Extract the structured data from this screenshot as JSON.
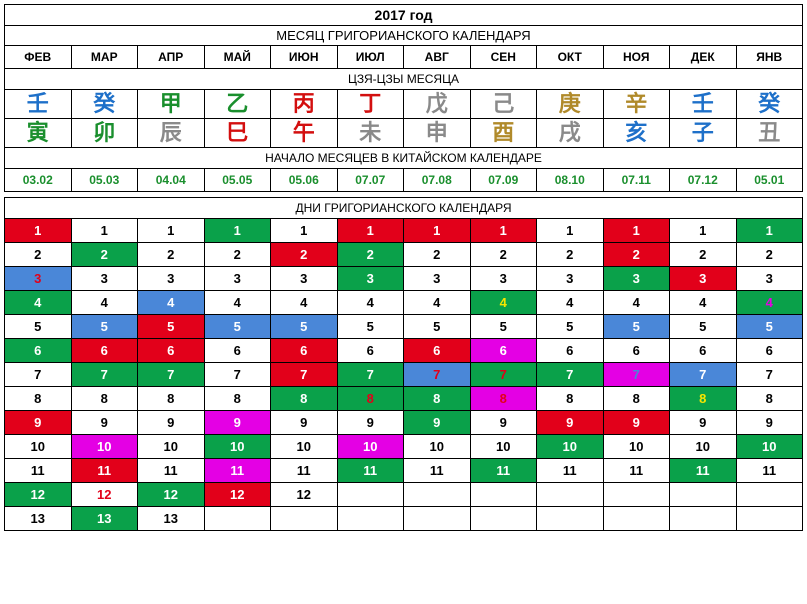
{
  "title": "2017 год",
  "subtitle_months": "МЕСЯЦ ГРИГОРИАНСКОГО КАЛЕНДАРЯ",
  "months": [
    "ФЕВ",
    "МАР",
    "АПР",
    "МАЙ",
    "ИЮН",
    "ИЮЛ",
    "АВГ",
    "СЕН",
    "ОКТ",
    "НОЯ",
    "ДЕК",
    "ЯНВ"
  ],
  "jiazi_label": "ЦЗЯ-ЦЗЫ МЕСЯЦА",
  "jiazi_row1": [
    {
      "char": "壬",
      "color": "#1e70c9"
    },
    {
      "char": "癸",
      "color": "#1e70c9"
    },
    {
      "char": "甲",
      "color": "#1a8f2d"
    },
    {
      "char": "乙",
      "color": "#1a8f2d"
    },
    {
      "char": "丙",
      "color": "#d30f0f"
    },
    {
      "char": "丁",
      "color": "#d30f0f"
    },
    {
      "char": "戊",
      "color": "#8a8a8a"
    },
    {
      "char": "己",
      "color": "#8a8a8a"
    },
    {
      "char": "庚",
      "color": "#b08a2a"
    },
    {
      "char": "辛",
      "color": "#b08a2a"
    },
    {
      "char": "壬",
      "color": "#1e70c9"
    },
    {
      "char": "癸",
      "color": "#1e70c9"
    }
  ],
  "jiazi_row2": [
    {
      "char": "寅",
      "color": "#1a8f2d"
    },
    {
      "char": "卯",
      "color": "#1a8f2d"
    },
    {
      "char": "辰",
      "color": "#8a8a8a"
    },
    {
      "char": "巳",
      "color": "#d30f0f"
    },
    {
      "char": "午",
      "color": "#d30f0f"
    },
    {
      "char": "未",
      "color": "#8a8a8a"
    },
    {
      "char": "申",
      "color": "#8a8a8a"
    },
    {
      "char": "酉",
      "color": "#b08a2a"
    },
    {
      "char": "戌",
      "color": "#8a8a8a"
    },
    {
      "char": "亥",
      "color": "#1e70c9"
    },
    {
      "char": "子",
      "color": "#1e70c9"
    },
    {
      "char": "丑",
      "color": "#8a8a8a"
    }
  ],
  "start_label": "НАЧАЛО МЕСЯЦЕВ В КИТАЙСКОМ КАЛЕНДАРЕ",
  "start_dates": [
    "03.02",
    "05.03",
    "04.04",
    "05.05",
    "05.06",
    "07.07",
    "07.08",
    "07.09",
    "08.10",
    "07.11",
    "07.12",
    "05.01"
  ],
  "start_date_color": "#1a8f2d",
  "days_label": "ДНИ ГРИГОРИАНСКОГО КАЛЕНДАРЯ",
  "colors": {
    "white": {
      "bg": "#ffffff",
      "fg": "#000000"
    },
    "red": {
      "bg": "#e2001a",
      "fg": "#ffffff"
    },
    "green": {
      "bg": "#0aa14a",
      "fg": "#ffffff"
    },
    "blue": {
      "bg": "#4a87d8",
      "fg": "#ffffff"
    },
    "magenta": {
      "bg": "#e400e4",
      "fg": "#ffffff"
    },
    "red_on_green": {
      "bg": "#0aa14a",
      "fg": "#e2001a"
    },
    "red_on_blue": {
      "bg": "#4a87d8",
      "fg": "#e2001a"
    },
    "red_on_magenta": {
      "bg": "#e400e4",
      "fg": "#e2001a"
    },
    "red_on_white": {
      "bg": "#ffffff",
      "fg": "#e2001a"
    },
    "blue_on_magenta": {
      "bg": "#e400e4",
      "fg": "#4a87d8"
    },
    "yellow_on_green": {
      "bg": "#0aa14a",
      "fg": "#f6e600"
    },
    "magenta_on_green": {
      "bg": "#0aa14a",
      "fg": "#e400e4"
    }
  },
  "days": [
    [
      {
        "v": "1",
        "c": "red"
      },
      {
        "v": "1",
        "c": "white"
      },
      {
        "v": "1",
        "c": "white"
      },
      {
        "v": "1",
        "c": "green"
      },
      {
        "v": "1",
        "c": "white"
      },
      {
        "v": "1",
        "c": "red"
      },
      {
        "v": "1",
        "c": "red"
      },
      {
        "v": "1",
        "c": "red"
      },
      {
        "v": "1",
        "c": "white"
      },
      {
        "v": "1",
        "c": "red"
      },
      {
        "v": "1",
        "c": "white"
      },
      {
        "v": "1",
        "c": "green"
      }
    ],
    [
      {
        "v": "2",
        "c": "white"
      },
      {
        "v": "2",
        "c": "green"
      },
      {
        "v": "2",
        "c": "white"
      },
      {
        "v": "2",
        "c": "white"
      },
      {
        "v": "2",
        "c": "red"
      },
      {
        "v": "2",
        "c": "green"
      },
      {
        "v": "2",
        "c": "white"
      },
      {
        "v": "2",
        "c": "white"
      },
      {
        "v": "2",
        "c": "white"
      },
      {
        "v": "2",
        "c": "red"
      },
      {
        "v": "2",
        "c": "white"
      },
      {
        "v": "2",
        "c": "white"
      }
    ],
    [
      {
        "v": "3",
        "c": "red_on_blue"
      },
      {
        "v": "3",
        "c": "white"
      },
      {
        "v": "3",
        "c": "white"
      },
      {
        "v": "3",
        "c": "white"
      },
      {
        "v": "3",
        "c": "white"
      },
      {
        "v": "3",
        "c": "green"
      },
      {
        "v": "3",
        "c": "white"
      },
      {
        "v": "3",
        "c": "white"
      },
      {
        "v": "3",
        "c": "white"
      },
      {
        "v": "3",
        "c": "green"
      },
      {
        "v": "3",
        "c": "red"
      },
      {
        "v": "3",
        "c": "white"
      }
    ],
    [
      {
        "v": "4",
        "c": "green"
      },
      {
        "v": "4",
        "c": "white"
      },
      {
        "v": "4",
        "c": "blue"
      },
      {
        "v": "4",
        "c": "white"
      },
      {
        "v": "4",
        "c": "white"
      },
      {
        "v": "4",
        "c": "white"
      },
      {
        "v": "4",
        "c": "white"
      },
      {
        "v": "4",
        "c": "yellow_on_green"
      },
      {
        "v": "4",
        "c": "white"
      },
      {
        "v": "4",
        "c": "white"
      },
      {
        "v": "4",
        "c": "white"
      },
      {
        "v": "4",
        "c": "magenta_on_green"
      }
    ],
    [
      {
        "v": "5",
        "c": "white"
      },
      {
        "v": "5",
        "c": "blue"
      },
      {
        "v": "5",
        "c": "red"
      },
      {
        "v": "5",
        "c": "blue"
      },
      {
        "v": "5",
        "c": "blue"
      },
      {
        "v": "5",
        "c": "white"
      },
      {
        "v": "5",
        "c": "white"
      },
      {
        "v": "5",
        "c": "white"
      },
      {
        "v": "5",
        "c": "white"
      },
      {
        "v": "5",
        "c": "blue"
      },
      {
        "v": "5",
        "c": "white"
      },
      {
        "v": "5",
        "c": "blue"
      }
    ],
    [
      {
        "v": "6",
        "c": "green"
      },
      {
        "v": "6",
        "c": "red"
      },
      {
        "v": "6",
        "c": "red"
      },
      {
        "v": "6",
        "c": "white"
      },
      {
        "v": "6",
        "c": "red"
      },
      {
        "v": "6",
        "c": "white"
      },
      {
        "v": "6",
        "c": "red"
      },
      {
        "v": "6",
        "c": "magenta"
      },
      {
        "v": "6",
        "c": "white"
      },
      {
        "v": "6",
        "c": "white"
      },
      {
        "v": "6",
        "c": "white"
      },
      {
        "v": "6",
        "c": "white"
      }
    ],
    [
      {
        "v": "7",
        "c": "white"
      },
      {
        "v": "7",
        "c": "green"
      },
      {
        "v": "7",
        "c": "green"
      },
      {
        "v": "7",
        "c": "white"
      },
      {
        "v": "7",
        "c": "red"
      },
      {
        "v": "7",
        "c": "green"
      },
      {
        "v": "7",
        "c": "red_on_blue"
      },
      {
        "v": "7",
        "c": "red_on_green"
      },
      {
        "v": "7",
        "c": "green"
      },
      {
        "v": "7",
        "c": "blue_on_magenta"
      },
      {
        "v": "7",
        "c": "blue"
      },
      {
        "v": "7",
        "c": "white"
      }
    ],
    [
      {
        "v": "8",
        "c": "white"
      },
      {
        "v": "8",
        "c": "white"
      },
      {
        "v": "8",
        "c": "white"
      },
      {
        "v": "8",
        "c": "white"
      },
      {
        "v": "8",
        "c": "green"
      },
      {
        "v": "8",
        "c": "red_on_green"
      },
      {
        "v": "8",
        "c": "green"
      },
      {
        "v": "8",
        "c": "red_on_magenta"
      },
      {
        "v": "8",
        "c": "white"
      },
      {
        "v": "8",
        "c": "white"
      },
      {
        "v": "8",
        "c": "yellow_on_green"
      },
      {
        "v": "8",
        "c": "white"
      }
    ],
    [
      {
        "v": "9",
        "c": "red"
      },
      {
        "v": "9",
        "c": "white"
      },
      {
        "v": "9",
        "c": "white"
      },
      {
        "v": "9",
        "c": "magenta"
      },
      {
        "v": "9",
        "c": "white"
      },
      {
        "v": "9",
        "c": "white"
      },
      {
        "v": "9",
        "c": "green"
      },
      {
        "v": "9",
        "c": "white"
      },
      {
        "v": "9",
        "c": "red"
      },
      {
        "v": "9",
        "c": "red"
      },
      {
        "v": "9",
        "c": "white"
      },
      {
        "v": "9",
        "c": "white"
      }
    ],
    [
      {
        "v": "10",
        "c": "white"
      },
      {
        "v": "10",
        "c": "magenta"
      },
      {
        "v": "10",
        "c": "white"
      },
      {
        "v": "10",
        "c": "green"
      },
      {
        "v": "10",
        "c": "white"
      },
      {
        "v": "10",
        "c": "magenta"
      },
      {
        "v": "10",
        "c": "white"
      },
      {
        "v": "10",
        "c": "white"
      },
      {
        "v": "10",
        "c": "green"
      },
      {
        "v": "10",
        "c": "white"
      },
      {
        "v": "10",
        "c": "white"
      },
      {
        "v": "10",
        "c": "green"
      }
    ],
    [
      {
        "v": "11",
        "c": "white"
      },
      {
        "v": "11",
        "c": "red"
      },
      {
        "v": "11",
        "c": "white"
      },
      {
        "v": "11",
        "c": "magenta"
      },
      {
        "v": "11",
        "c": "white"
      },
      {
        "v": "11",
        "c": "green"
      },
      {
        "v": "11",
        "c": "white"
      },
      {
        "v": "11",
        "c": "green"
      },
      {
        "v": "11",
        "c": "white"
      },
      {
        "v": "11",
        "c": "white"
      },
      {
        "v": "11",
        "c": "green"
      },
      {
        "v": "11",
        "c": "white"
      }
    ],
    [
      {
        "v": "12",
        "c": "green"
      },
      {
        "v": "12",
        "c": "red_on_white"
      },
      {
        "v": "12",
        "c": "green"
      },
      {
        "v": "12",
        "c": "red"
      },
      {
        "v": "12",
        "c": "white"
      },
      {
        "v": "",
        "c": "white"
      },
      {
        "v": "",
        "c": "white"
      },
      {
        "v": "",
        "c": "white"
      },
      {
        "v": "",
        "c": "white"
      },
      {
        "v": "",
        "c": "white"
      },
      {
        "v": "",
        "c": "white"
      },
      {
        "v": "",
        "c": "white"
      }
    ],
    [
      {
        "v": "13",
        "c": "white"
      },
      {
        "v": "13",
        "c": "green"
      },
      {
        "v": "13",
        "c": "white"
      },
      {
        "v": "",
        "c": "white"
      },
      {
        "v": "",
        "c": "white"
      },
      {
        "v": "",
        "c": "white"
      },
      {
        "v": "",
        "c": "white"
      },
      {
        "v": "",
        "c": "white"
      },
      {
        "v": "",
        "c": "white"
      },
      {
        "v": "",
        "c": "white"
      },
      {
        "v": "",
        "c": "white"
      },
      {
        "v": "",
        "c": "white"
      }
    ]
  ]
}
